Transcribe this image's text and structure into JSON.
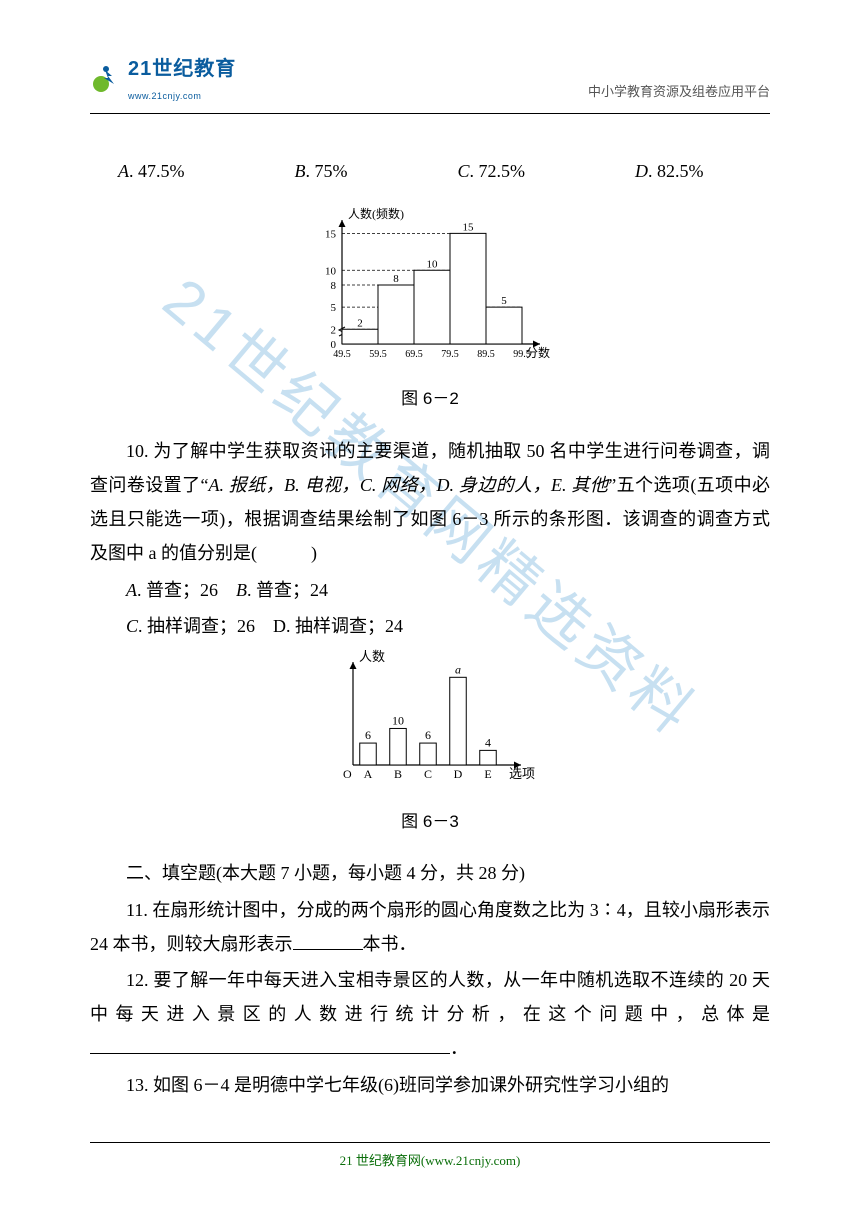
{
  "header": {
    "logo_main": "21世纪教育",
    "logo_sub": "www.21cnjy.com",
    "right_text": "中小学教育资源及组卷应用平台"
  },
  "watermark": "21世纪教育网精选资料",
  "q9": {
    "options": {
      "A": "47.5%",
      "B": "75%",
      "C": "72.5%",
      "D": "82.5%"
    },
    "chart": {
      "type": "histogram",
      "y_label": "人数(频数)",
      "x_label": "分数",
      "x_ticks": [
        "49.5",
        "59.5",
        "69.5",
        "79.5",
        "89.5",
        "99.5"
      ],
      "y_ticks": [
        0,
        2,
        5,
        8,
        10,
        15
      ],
      "bars": [
        2,
        8,
        10,
        15,
        5
      ],
      "bar_labels": [
        "2",
        "8",
        "10",
        "15",
        "5"
      ],
      "bg": "#ffffff",
      "bar_fill": "#ffffff",
      "bar_stroke": "#000000",
      "axis_color": "#000000",
      "dash_color": "#000000"
    },
    "caption": "图 6－2"
  },
  "q10": {
    "text_prefix": "10. 为了解中学生获取资讯的主要渠道，随机抽取 50 名中学生进行问卷调查，调查问卷设置了“",
    "opts_in_text": "A. 报纸，B. 电视，C. 网络，D. 身边的人，E. 其他",
    "text_mid": "”五个选项(五项中必选且只能选一项)，根据调查结果绘制了如图 6－3 所示的条形图．该调查的调查方式及图中 a 的值分别是(　　　)",
    "options_line1": "A. 普查；26　B. 普查；24",
    "options_line2": "C. 抽样调查；26　D. 抽样调查；24",
    "chart": {
      "type": "bar",
      "y_label": "人数",
      "x_label": "选项",
      "categories": [
        "A",
        "B",
        "C",
        "D",
        "E"
      ],
      "values": [
        6,
        10,
        6,
        null,
        4
      ],
      "value_labels": [
        "6",
        "10",
        "6",
        "a",
        "4"
      ],
      "d_height": 24,
      "d_label_style": "italic",
      "bg": "#ffffff",
      "bar_fill": "#ffffff",
      "bar_stroke": "#000000",
      "axis_color": "#000000"
    },
    "caption": "图 6－3"
  },
  "section2": {
    "title": "二、填空题(本大题 7 小题，每小题 4 分，共 28 分)"
  },
  "q11": {
    "text": "11. 在扇形统计图中，分成的两个扇形的圆心角度数之比为 3∶4，且较小扇形表示 24 本书，则较大扇形表示",
    "suffix": "本书．"
  },
  "q12": {
    "text": "12. 要了解一年中每天进入宝相寺景区的人数，从一年中随机选取不连续的 20 天中每天进入景区的人数进行统计分析，在这个问题中，总体是",
    "suffix": "．"
  },
  "q13": {
    "text": "13. 如图 6－4 是明德中学七年级(6)班同学参加课外研究性学习小组的"
  },
  "footer": {
    "text": "21 世纪教育网(www.21cnjy.com)"
  }
}
